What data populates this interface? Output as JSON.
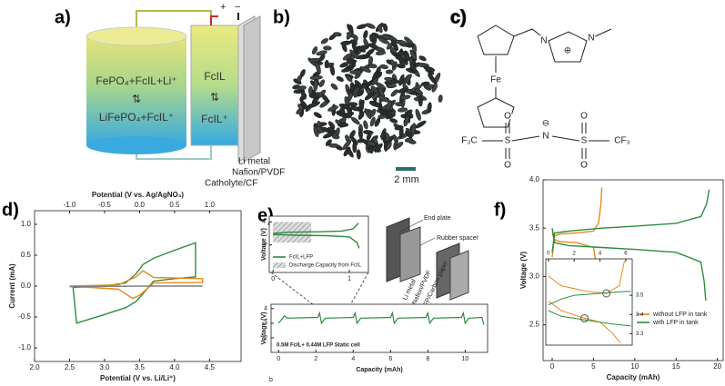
{
  "panels": {
    "a": {
      "label": "a)",
      "tank_top": "FePO₄+FcIL+Li⁺",
      "tank_arrow": "⇅",
      "tank_bottom": "LiFePO₄+FcIL⁺",
      "cell_top": "FcIL",
      "cell_arrow": "⇅",
      "cell_bottom": "FcIL⁺",
      "terminals": [
        "+",
        "−"
      ],
      "layers": [
        "Li metal",
        "Nafion/PVDF",
        "Catholyte/CF"
      ]
    },
    "b": {
      "label": "b)",
      "scale_bar": "2 mm"
    },
    "c": {
      "label": "c)",
      "atoms": [
        "Fe",
        "N",
        "N",
        "⊕",
        "F₃C",
        "S",
        "O",
        "O",
        "N",
        "⊖",
        "S",
        "O",
        "O",
        "CF₃"
      ]
    },
    "d": {
      "label": "d)"
    },
    "e": {
      "label": "e)",
      "footnote": "b",
      "photo_labels": [
        "End plate",
        "Rubber spacer",
        "Li metal",
        "Nafion/PVDF",
        "LFP/Carbon paper"
      ]
    },
    "f": {
      "label": "f)"
    }
  },
  "chart_data": [
    {
      "type": "line",
      "xlabel": "Potential (V vs. Li/Li⁺)",
      "x2label": "Potential (V vs. Ag/AgNO₃)",
      "ylabel": "Current (mA)",
      "xlim": [
        2.0,
        4.95
      ],
      "xticks": [
        {
          "value": 2,
          "label": "2.0"
        },
        2.5,
        {
          "value": 3,
          "label": "3.0"
        },
        3.5,
        {
          "value": 4,
          "label": "4.0"
        },
        4.5
      ],
      "x2lim": [
        -1.5,
        1.45
      ],
      "x2ticks": [
        {
          "value": -1,
          "label": "-1.0"
        },
        -0.5,
        {
          "value": 0,
          "label": "0.0"
        },
        0.5,
        {
          "value": 1,
          "label": "1.0"
        }
      ],
      "ylim": [
        -1.22,
        1.22
      ],
      "yticks": [
        {
          "value": 1,
          "label": "1.0"
        },
        0.5,
        {
          "value": 0,
          "label": "0.0"
        },
        -0.5,
        {
          "value": -1,
          "label": "-1.0"
        }
      ],
      "series": [
        {
          "color": "#2e8b3e",
          "x": [
            2.55,
            3.0,
            3.3,
            3.45,
            3.55,
            3.7,
            4.0,
            4.3,
            4.3,
            4.0,
            3.7,
            3.55,
            3.45,
            3.3,
            3.0,
            2.6,
            2.55
          ],
          "values": [
            -0.02,
            0.0,
            0.05,
            0.2,
            0.35,
            0.45,
            0.58,
            0.7,
            0.15,
            0.12,
            0.08,
            -0.12,
            -0.25,
            -0.35,
            -0.46,
            -0.6,
            -0.02
          ]
        },
        {
          "color": "#e8891c",
          "x": [
            2.5,
            3.2,
            3.45,
            3.55,
            3.7,
            4.4,
            4.4,
            3.7,
            3.5,
            3.4,
            3.2,
            2.5
          ],
          "values": [
            0.0,
            0.02,
            0.15,
            0.25,
            0.14,
            0.12,
            0.06,
            0.05,
            -0.15,
            -0.2,
            -0.05,
            0.0
          ]
        },
        {
          "color": "#7f7f7f",
          "x": [
            2.5,
            3.5,
            4.4
          ],
          "values": [
            -0.01,
            0.0,
            0.0
          ]
        }
      ]
    },
    {
      "type": "line",
      "ylabel": "Voltage (V)",
      "xlim": [
        -0.05,
        1.25
      ],
      "xticks": [
        0,
        1
      ],
      "ylim": [
        1.8,
        4.25
      ],
      "yticks": [
        3,
        4
      ],
      "shaded": {
        "label": "Discharge Capacity from FcIL",
        "xlim": [
          0,
          0.5
        ],
        "ylim": [
          3.1,
          4.0
        ]
      },
      "series": [
        {
          "name": "FcIL+LFP",
          "color": "#2e8b3e",
          "x": [
            0,
            0.2,
            0.6,
            0.9,
            1.05,
            1.12,
            null,
            0,
            0.3,
            0.7,
            1.0,
            1.1,
            1.13
          ],
          "values": [
            3.5,
            3.55,
            3.57,
            3.6,
            3.7,
            3.95,
            null,
            3.45,
            3.42,
            3.4,
            3.35,
            3.1,
            2.85
          ]
        }
      ]
    },
    {
      "type": "line",
      "xlabel": "Capacity (mAh)",
      "ylabel": "Voltage (V)",
      "annotation": "0.5M FcIL+ 0.44M LFP Static cell",
      "xlim": [
        -0.4,
        11.2
      ],
      "xticks": [
        0,
        2,
        4,
        6,
        8,
        10
      ],
      "ylim": [
        1.0,
        4.3
      ],
      "yticks": [
        2,
        3,
        4
      ],
      "series": [
        {
          "color": "#2e8b3e",
          "x": [
            0,
            0.2,
            0.3,
            0.5,
            2.1,
            2.2,
            2.3,
            2.5,
            4.0,
            4.1,
            4.2,
            4.4,
            6.0,
            6.1,
            6.2,
            6.4,
            7.9,
            8.0,
            8.1,
            8.3,
            9.8,
            9.9,
            10.0,
            10.2,
            10.9,
            11.0
          ],
          "values": [
            3.0,
            3.3,
            3.5,
            3.35,
            3.4,
            3.7,
            3.0,
            3.35,
            3.4,
            3.7,
            3.0,
            3.35,
            3.4,
            3.7,
            3.0,
            3.35,
            3.4,
            3.7,
            3.0,
            3.35,
            3.4,
            3.7,
            3.0,
            3.35,
            3.4,
            2.9
          ]
        }
      ]
    },
    {
      "type": "line",
      "xlabel": "Capacity (mAh)",
      "ylabel": "Voltage (V)",
      "xlim": [
        -1.1,
        20.7
      ],
      "xticks": [
        0,
        5,
        10,
        15,
        20
      ],
      "ylim": [
        2.13,
        4.0
      ],
      "yticks": [
        2.5,
        {
          "value": 3,
          "label": "3.0"
        },
        3.5,
        {
          "value": 4,
          "label": "4.0"
        }
      ],
      "series": [
        {
          "name": "without LFP in tank",
          "color": "#e8891c",
          "x": [
            0,
            0.3,
            1,
            3,
            5,
            5.6,
            5.9,
            6.0,
            null,
            0,
            0.3,
            1,
            3,
            5,
            5.3,
            5.5,
            5.6
          ],
          "values": [
            3.2,
            3.42,
            3.44,
            3.45,
            3.47,
            3.55,
            3.75,
            3.92,
            null,
            3.45,
            3.38,
            3.36,
            3.35,
            3.3,
            3.15,
            2.9,
            2.72
          ]
        },
        {
          "name": "with LFP in tank",
          "color": "#2e8b3e",
          "x": [
            0,
            0.3,
            2,
            6,
            10,
            15,
            18,
            18.7,
            19,
            null,
            0,
            0.3,
            2,
            6,
            10,
            15,
            18,
            18.4,
            18.6
          ],
          "values": [
            3.25,
            3.45,
            3.47,
            3.5,
            3.52,
            3.55,
            3.62,
            3.75,
            3.9,
            null,
            3.5,
            3.35,
            3.32,
            3.3,
            3.28,
            3.25,
            3.15,
            2.95,
            2.75
          ]
        }
      ]
    },
    {
      "type": "line",
      "xlim": [
        -0.2,
        6.5
      ],
      "xticks": [
        0,
        2,
        4,
        6
      ],
      "ylim": [
        3.24,
        3.69
      ],
      "yticks": [
        3.3,
        3.4,
        3.5
      ],
      "markers": [
        [
          4.5,
          3.51
        ],
        [
          2.8,
          3.38
        ]
      ],
      "series": [
        {
          "color": "#e8891c",
          "x": [
            0,
            1,
            3,
            4.5,
            5.5,
            5.9,
            null,
            0,
            1,
            2.8,
            4,
            5,
            5.6
          ],
          "values": [
            3.6,
            3.55,
            3.52,
            3.51,
            3.55,
            3.68,
            null,
            3.47,
            3.42,
            3.38,
            3.36,
            3.3,
            3.25
          ]
        },
        {
          "color": "#2e8b3e",
          "x": [
            0,
            1,
            2,
            4,
            6,
            6.4,
            null,
            0,
            1,
            3,
            5,
            6.4
          ],
          "values": [
            3.45,
            3.48,
            3.5,
            3.51,
            3.52,
            3.52,
            null,
            3.42,
            3.39,
            3.37,
            3.35,
            3.34
          ]
        }
      ]
    }
  ]
}
